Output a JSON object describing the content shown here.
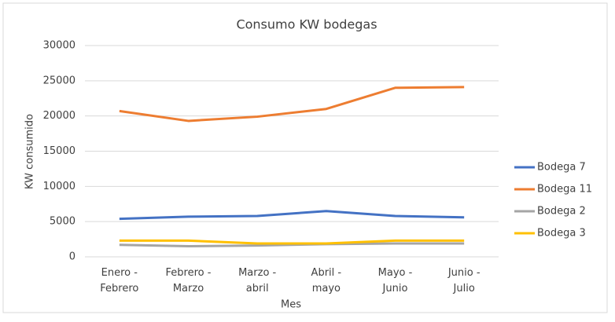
{
  "chart_data": {
    "type": "line",
    "title": "Consumo KW bodegas",
    "xlabel": "Mes",
    "ylabel": "KW consumido",
    "categories": [
      "Enero - Febrero",
      "Febrero - Marzo",
      "Marzo - abril",
      "Abril - mayo",
      "Mayo - Junio",
      "Junio - Julio"
    ],
    "series": [
      {
        "name": "Bodega 7",
        "color": "#4472c4",
        "values": [
          5400,
          5700,
          5800,
          6500,
          5800,
          5600
        ]
      },
      {
        "name": "Bodega 11",
        "color": "#ed7d31",
        "values": [
          20700,
          19300,
          19900,
          21000,
          24000,
          24100
        ]
      },
      {
        "name": "Bodega 2",
        "color": "#a5a5a5",
        "values": [
          1700,
          1500,
          1600,
          1800,
          1900,
          1900
        ]
      },
      {
        "name": "Bodega 3",
        "color": "#ffc000",
        "values": [
          2300,
          2300,
          1900,
          1900,
          2300,
          2300
        ]
      }
    ],
    "ylim": [
      0,
      30000
    ],
    "yticks": [
      0,
      5000,
      10000,
      15000,
      20000,
      25000,
      30000
    ],
    "grid": true,
    "legend": "right"
  }
}
